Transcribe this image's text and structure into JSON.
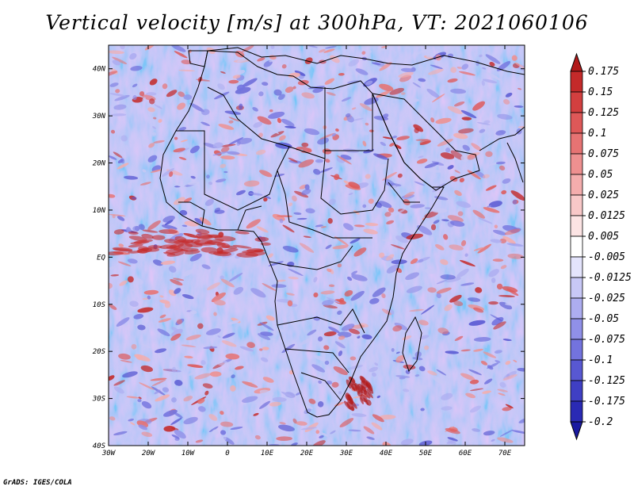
{
  "title": "Vertical velocity [m/s] at 300hPa, VT: 2021060106",
  "footer": "GrADS: IGES/COLA",
  "map": {
    "lon_range": [
      -30,
      75
    ],
    "lat_range": [
      -40,
      45
    ],
    "lat_ticks": [
      {
        "value": 40,
        "label": "40N"
      },
      {
        "value": 30,
        "label": "30N"
      },
      {
        "value": 20,
        "label": "20N"
      },
      {
        "value": 10,
        "label": "10N"
      },
      {
        "value": 0,
        "label": "EQ"
      },
      {
        "value": -10,
        "label": "10S"
      },
      {
        "value": -20,
        "label": "20S"
      },
      {
        "value": -30,
        "label": "30S"
      },
      {
        "value": -40,
        "label": "40S"
      }
    ],
    "lon_ticks": [
      {
        "value": -30,
        "label": "30W"
      },
      {
        "value": -20,
        "label": "20W"
      },
      {
        "value": -10,
        "label": "10W"
      },
      {
        "value": 0,
        "label": "0"
      },
      {
        "value": 10,
        "label": "10E"
      },
      {
        "value": 20,
        "label": "20E"
      },
      {
        "value": 30,
        "label": "30E"
      },
      {
        "value": 40,
        "label": "40E"
      },
      {
        "value": 50,
        "label": "50E"
      },
      {
        "value": 60,
        "label": "60E"
      },
      {
        "value": 70,
        "label": "70E"
      }
    ]
  },
  "colorbar": {
    "labels": [
      "0.175",
      "0.15",
      "0.125",
      "0.1",
      "0.075",
      "0.05",
      "0.025",
      "0.0125",
      "0.005",
      "-0.005",
      "-0.0125",
      "-0.025",
      "-0.05",
      "-0.075",
      "-0.1",
      "-0.125",
      "-0.175",
      "-0.2"
    ],
    "colors": [
      "#b21a1a",
      "#c42a2a",
      "#d33f3f",
      "#de5858",
      "#e67373",
      "#ee9090",
      "#f4adad",
      "#f8c8c8",
      "#fce4e4",
      "#ffffff",
      "#e4e4fc",
      "#c8c8f6",
      "#adadf0",
      "#9090e8",
      "#7373de",
      "#5858d2",
      "#3f3fc4",
      "#2a2ab4",
      "#1a1aa0"
    ]
  }
}
